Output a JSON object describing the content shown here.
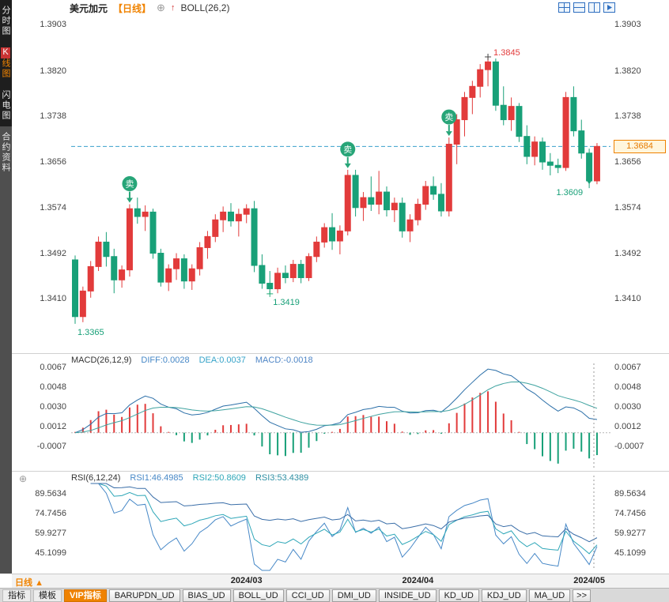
{
  "header": {
    "symbol": "美元加元",
    "period_tag": "【日线】",
    "add_icon": "⊕",
    "flag_icon": "↑",
    "indicator_label": "BOLL(26,2)"
  },
  "layout_icons": [
    {
      "name": "layout-grid-icon"
    },
    {
      "name": "layout-split-horizontal-icon"
    },
    {
      "name": "layout-split-vertical-icon"
    },
    {
      "name": "layout-next-chart-icon"
    }
  ],
  "sidebar": {
    "items": [
      {
        "label": "分时图"
      },
      {
        "label": "K线图",
        "active": true
      },
      {
        "label": "闪电图"
      },
      {
        "label": "合约资料",
        "alt": true
      }
    ]
  },
  "macd_header": {
    "title": "MACD(26,12,9)",
    "diff": "DIFF:0.0028",
    "dea": "DEA:0.0037",
    "macd": "MACD:-0.0018"
  },
  "rsi_header": {
    "title": "RSI(6,12,24)",
    "rsi1": "RSI1:46.4985",
    "rsi2": "RSI2:50.8609",
    "rsi3": "RSI3:53.4389",
    "gear_icon": "⊕"
  },
  "bottom": {
    "period_label": "日线",
    "arrow": "▲",
    "tabs": [
      {
        "label": "指标",
        "style": "plain"
      },
      {
        "label": "模板",
        "style": "plain"
      },
      {
        "label": "VIP指标",
        "style": "vip"
      },
      {
        "label": "BARUPDN_UD"
      },
      {
        "label": "BIAS_UD"
      },
      {
        "label": "BOLL_UD"
      },
      {
        "label": "CCI_UD"
      },
      {
        "label": "DMI_UD"
      },
      {
        "label": "INSIDE_UD"
      },
      {
        "label": "KD_UD"
      },
      {
        "label": "KDJ_UD"
      },
      {
        "label": "MA_UD"
      },
      {
        "label": ">>",
        "style": "more"
      }
    ]
  },
  "colors": {
    "up": "#e23b3b",
    "down": "#18a078",
    "signal": "#27a578",
    "dashed_line": "#3aa0cc",
    "accent": "#ef8200",
    "macd_diff_line": "#2b6fa8",
    "macd_dea_line": "#3fa3a0",
    "rsi_lines": [
      "#4788c7",
      "#2fa7b8",
      "#3a6ea8"
    ]
  },
  "chart_data": {
    "type": "candlestick+indicators",
    "candlestick": {
      "title": "美元加元 日线",
      "ylim": [
        1.3318,
        1.3916
      ],
      "axis_ticks": [
        1.3903,
        1.382,
        1.3738,
        1.3656,
        1.3574,
        1.3492,
        1.341
      ],
      "months": [
        {
          "label": "2024/03",
          "index": 22
        },
        {
          "label": "2024/04",
          "index": 44
        },
        {
          "label": "2024/05",
          "index": 66
        }
      ],
      "signal_label": "卖",
      "sell_signal_indices": [
        7,
        35,
        48
      ],
      "current_price": 1.3684,
      "annotations": {
        "high": {
          "index": 53,
          "text": "1.3845"
        },
        "low_first": {
          "index": 0,
          "text": "1.3365"
        },
        "low_march": {
          "index": 25,
          "text": "1.3419"
        },
        "low_recent": {
          "index": 66,
          "text": "1.3609"
        },
        "current_price_label": "1.3684"
      },
      "ohlc": [
        [
          1.348,
          1.3488,
          1.3365,
          1.3378
        ],
        [
          1.3378,
          1.3432,
          1.3368,
          1.3424
        ],
        [
          1.3424,
          1.3478,
          1.3412,
          1.3468
        ],
        [
          1.3468,
          1.3522,
          1.346,
          1.3512
        ],
        [
          1.3512,
          1.353,
          1.3468,
          1.3486
        ],
        [
          1.3486,
          1.35,
          1.342,
          1.3444
        ],
        [
          1.3444,
          1.347,
          1.343,
          1.3462
        ],
        [
          1.3462,
          1.358,
          1.345,
          1.3572
        ],
        [
          1.3572,
          1.3592,
          1.3545,
          1.3558
        ],
        [
          1.3558,
          1.3578,
          1.3532,
          1.3566
        ],
        [
          1.3566,
          1.3572,
          1.3482,
          1.3492
        ],
        [
          1.3492,
          1.35,
          1.3432,
          1.344
        ],
        [
          1.344,
          1.3472,
          1.3424,
          1.3464
        ],
        [
          1.3464,
          1.3492,
          1.3444,
          1.3482
        ],
        [
          1.3482,
          1.349,
          1.3428,
          1.3442
        ],
        [
          1.3442,
          1.3472,
          1.3426,
          1.3464
        ],
        [
          1.3464,
          1.3512,
          1.3452,
          1.3502
        ],
        [
          1.3502,
          1.3532,
          1.3482,
          1.3522
        ],
        [
          1.3522,
          1.3562,
          1.3512,
          1.3552
        ],
        [
          1.3552,
          1.3576,
          1.353,
          1.3566
        ],
        [
          1.3566,
          1.3582,
          1.354,
          1.355
        ],
        [
          1.355,
          1.3572,
          1.3522,
          1.3562
        ],
        [
          1.3562,
          1.358,
          1.3546,
          1.3572
        ],
        [
          1.3572,
          1.3586,
          1.3458,
          1.347
        ],
        [
          1.347,
          1.349,
          1.3428,
          1.3438
        ],
        [
          1.3438,
          1.346,
          1.3419,
          1.3428
        ],
        [
          1.3428,
          1.3466,
          1.342,
          1.3456
        ],
        [
          1.3456,
          1.347,
          1.3438,
          1.3448
        ],
        [
          1.3448,
          1.348,
          1.344,
          1.3472
        ],
        [
          1.3472,
          1.348,
          1.3438,
          1.3448
        ],
        [
          1.3448,
          1.3492,
          1.3442,
          1.3486
        ],
        [
          1.3486,
          1.3522,
          1.3476,
          1.3512
        ],
        [
          1.3512,
          1.3546,
          1.3502,
          1.3538
        ],
        [
          1.3538,
          1.3564,
          1.3498,
          1.3514
        ],
        [
          1.3514,
          1.3542,
          1.349,
          1.3532
        ],
        [
          1.3532,
          1.3642,
          1.3524,
          1.3632
        ],
        [
          1.3632,
          1.3642,
          1.3558,
          1.3574
        ],
        [
          1.3574,
          1.3602,
          1.355,
          1.3592
        ],
        [
          1.3592,
          1.363,
          1.3568,
          1.358
        ],
        [
          1.358,
          1.364,
          1.3562,
          1.3602
        ],
        [
          1.3602,
          1.3612,
          1.3558,
          1.357
        ],
        [
          1.357,
          1.3592,
          1.3548,
          1.3582
        ],
        [
          1.3582,
          1.3592,
          1.352,
          1.3532
        ],
        [
          1.3532,
          1.3562,
          1.3512,
          1.3552
        ],
        [
          1.3552,
          1.359,
          1.3542,
          1.358
        ],
        [
          1.358,
          1.3622,
          1.357,
          1.3612
        ],
        [
          1.3612,
          1.363,
          1.3588,
          1.3598
        ],
        [
          1.3598,
          1.3618,
          1.3558,
          1.3568
        ],
        [
          1.3568,
          1.37,
          1.3558,
          1.3688
        ],
        [
          1.3688,
          1.3742,
          1.3652,
          1.3732
        ],
        [
          1.3732,
          1.3782,
          1.3702,
          1.3772
        ],
        [
          1.3772,
          1.3802,
          1.3742,
          1.3792
        ],
        [
          1.3792,
          1.3832,
          1.3772,
          1.3822
        ],
        [
          1.3822,
          1.3845,
          1.3792,
          1.3836
        ],
        [
          1.3836,
          1.3842,
          1.3748,
          1.3758
        ],
        [
          1.3758,
          1.3792,
          1.3722,
          1.3732
        ],
        [
          1.3732,
          1.3772,
          1.3712,
          1.3756
        ],
        [
          1.3756,
          1.3762,
          1.3692,
          1.3702
        ],
        [
          1.3702,
          1.3722,
          1.3652,
          1.3666
        ],
        [
          1.3666,
          1.3702,
          1.365,
          1.3692
        ],
        [
          1.3692,
          1.37,
          1.3642,
          1.3656
        ],
        [
          1.3656,
          1.3672,
          1.3632,
          1.365
        ],
        [
          1.365,
          1.3662,
          1.3636,
          1.3646
        ],
        [
          1.3646,
          1.3782,
          1.364,
          1.3772
        ],
        [
          1.3772,
          1.3792,
          1.3702,
          1.3712
        ],
        [
          1.3712,
          1.3732,
          1.3662,
          1.3672
        ],
        [
          1.3672,
          1.368,
          1.3609,
          1.3622
        ],
        [
          1.3622,
          1.369,
          1.3616,
          1.3684
        ]
      ]
    },
    "macd": {
      "params": "MACD(26,12,9)",
      "axis_ticks": [
        0.0067,
        0.0048,
        0.003,
        0.0012,
        -0.0007
      ]
    },
    "rsi": {
      "params": "RSI(6,12,24)",
      "axis_ticks": [
        89.5634,
        74.7456,
        59.9277,
        45.1099
      ]
    }
  }
}
